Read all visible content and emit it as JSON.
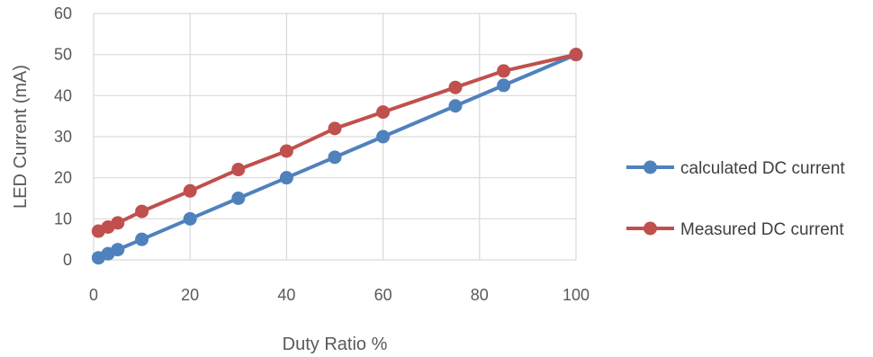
{
  "chart_data": {
    "type": "line",
    "title": "",
    "xlabel": "Duty Ratio %",
    "ylabel": "LED Current (mA)",
    "xlim": [
      0,
      100
    ],
    "ylim": [
      0,
      60
    ],
    "xticks": [
      0,
      20,
      40,
      60,
      80,
      100
    ],
    "yticks": [
      0,
      10,
      20,
      30,
      40,
      50,
      60
    ],
    "grid": "vertical and horizontal",
    "legend_position": "right",
    "series": [
      {
        "name": "calculated DC current",
        "color": "#4F81BD",
        "x": [
          1,
          3,
          5,
          10,
          20,
          30,
          40,
          50,
          60,
          75,
          85,
          100
        ],
        "y": [
          0.5,
          1.5,
          2.5,
          5,
          10,
          15,
          20,
          25,
          30,
          37.5,
          42.5,
          50
        ]
      },
      {
        "name": "Measured DC current",
        "color": "#C0504D",
        "x": [
          1,
          3,
          5,
          10,
          20,
          30,
          40,
          50,
          60,
          75,
          85,
          100
        ],
        "y": [
          7,
          8,
          9,
          11.8,
          16.8,
          22,
          26.5,
          32,
          36,
          42,
          46,
          50
        ]
      }
    ]
  }
}
